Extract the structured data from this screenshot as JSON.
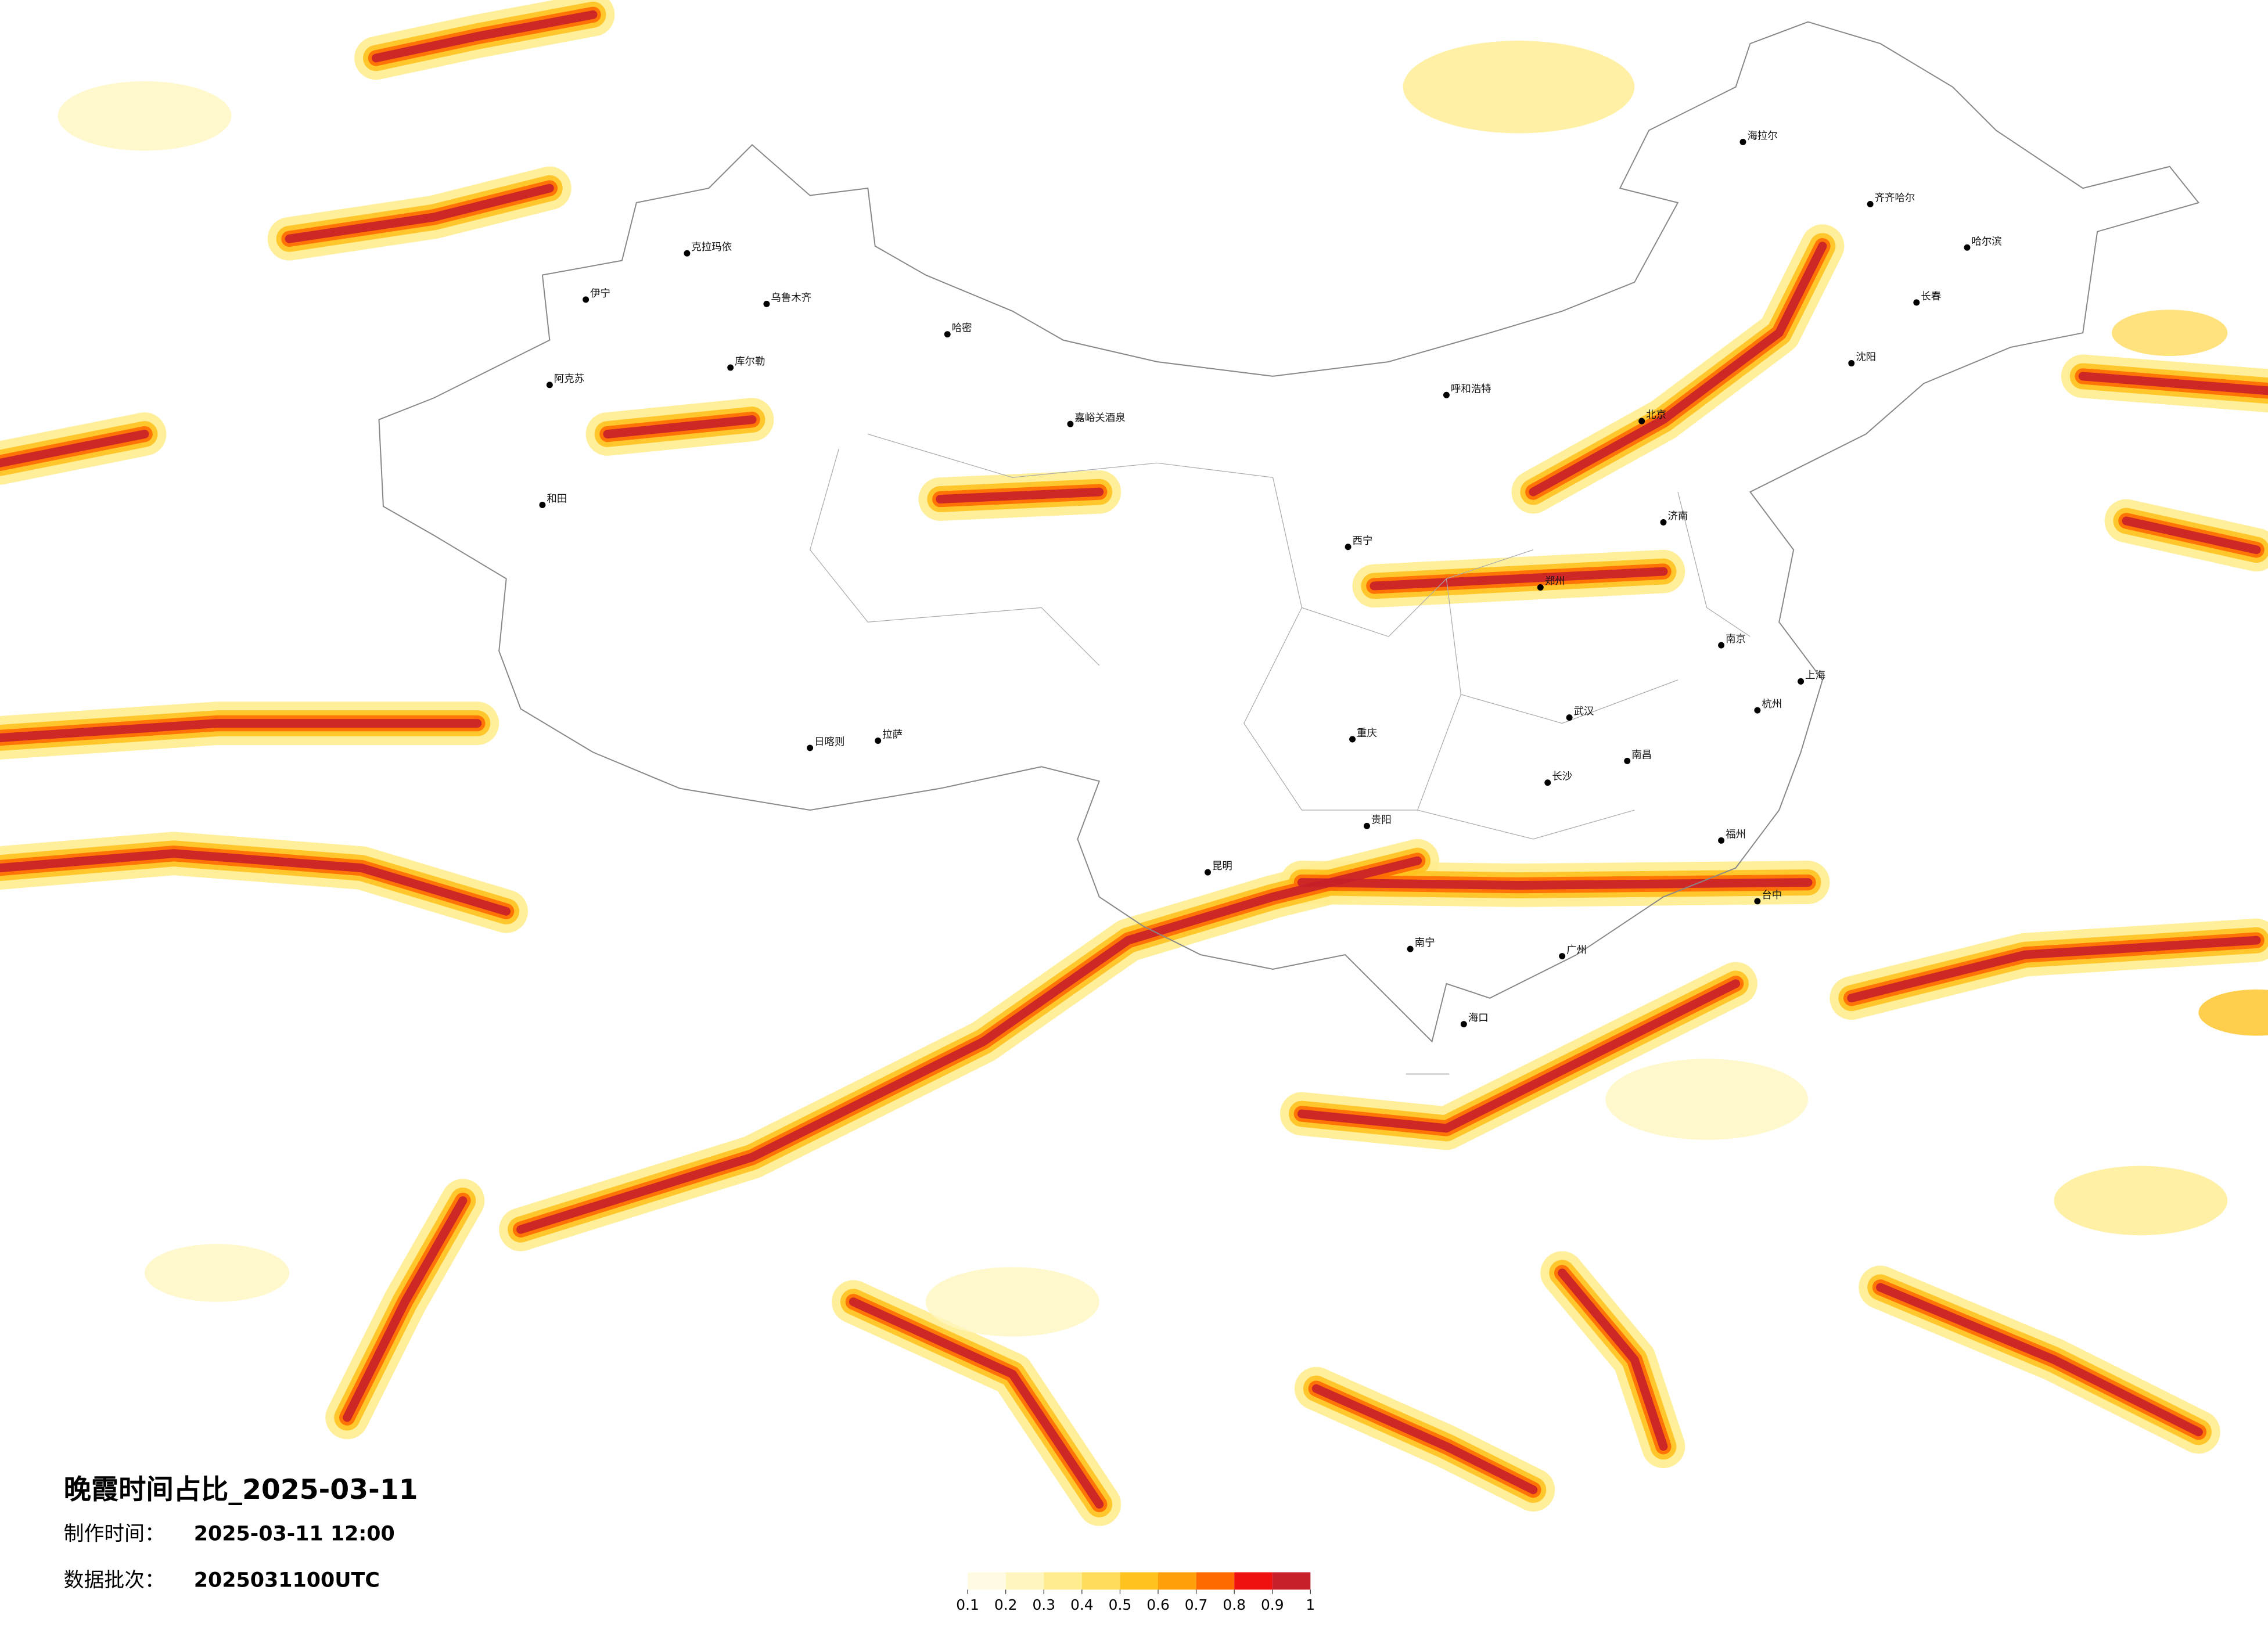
{
  "map": {
    "title": "晚霞时间占比_2025-03-11",
    "production_time": {
      "label": "制作时间：",
      "value": "2025-03-11 12:00"
    },
    "data_batch": {
      "label": "数据批次：",
      "value": "2025031100UTC"
    },
    "colorbar": {
      "ticks": [
        0.1,
        0.2,
        0.3,
        0.4,
        0.5,
        0.6,
        0.7,
        0.8,
        0.9,
        1
      ],
      "colors": [
        "#fffbe3",
        "#fff6bf",
        "#ffec8f",
        "#ffdb5c",
        "#ffc21f",
        "#ff9f0a",
        "#ff6a00",
        "#f01010",
        "#c8202a"
      ]
    },
    "cities": [
      "克拉玛依",
      "伊宁",
      "乌鲁木齐",
      "库尔勒",
      "阿克苏",
      "和田",
      "哈密",
      "嘉峪关酒泉",
      "西宁",
      "拉萨",
      "日喀则",
      "昆明",
      "海拉尔",
      "齐齐哈尔",
      "哈尔滨",
      "长春",
      "沈阳",
      "北京",
      "呼和浩特",
      "济南",
      "郑州",
      "武汉",
      "南昌",
      "长沙",
      "广州",
      "南宁",
      "海口",
      "台中",
      "贵阳",
      "重庆",
      "上海",
      "杭州",
      "福州",
      "南京"
    ]
  }
}
